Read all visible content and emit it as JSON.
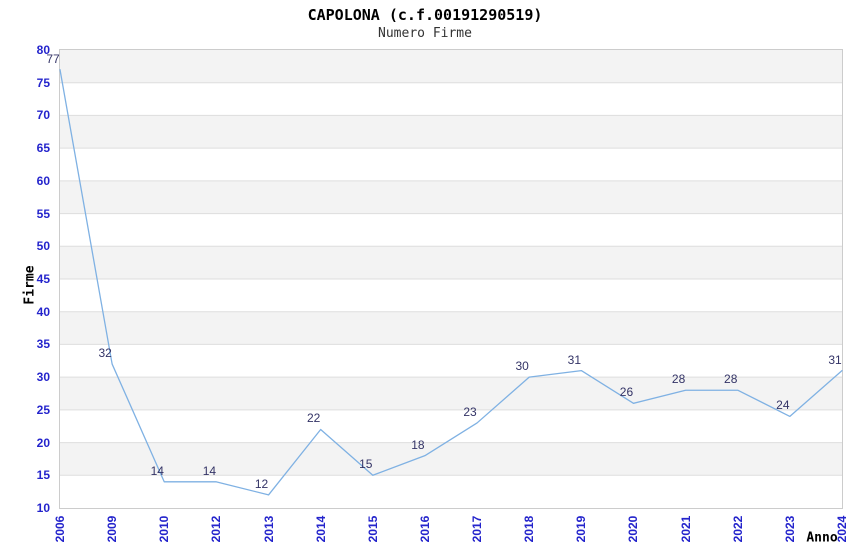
{
  "chart_data": {
    "type": "line",
    "title": "CAPOLONA (c.f.00191290519)",
    "subtitle": "Numero Firme",
    "ylabel": "Firme",
    "xlabel": "Anno",
    "categories": [
      "2006",
      "2009",
      "2010",
      "2012",
      "2013",
      "2014",
      "2015",
      "2016",
      "2017",
      "2018",
      "2019",
      "2020",
      "2021",
      "2022",
      "2023",
      "2024"
    ],
    "values": [
      77,
      32,
      14,
      14,
      12,
      22,
      15,
      18,
      23,
      30,
      31,
      26,
      28,
      28,
      24,
      31
    ],
    "ylim": [
      10,
      80
    ],
    "ytick_step": 5,
    "yticks": [
      10,
      15,
      20,
      25,
      30,
      35,
      40,
      45,
      50,
      55,
      60,
      65,
      70,
      75,
      80
    ],
    "grid": "horizontal-bands-alternating",
    "legend": "none",
    "colors": {
      "line": "#7fb1e3",
      "point_label": "#333366",
      "tick_label": "#2424cc",
      "band": "#f3f3f3",
      "gridline": "#dedede",
      "plot_border": "#cccccc",
      "title": "#000000",
      "subtitle": "#333333"
    }
  }
}
